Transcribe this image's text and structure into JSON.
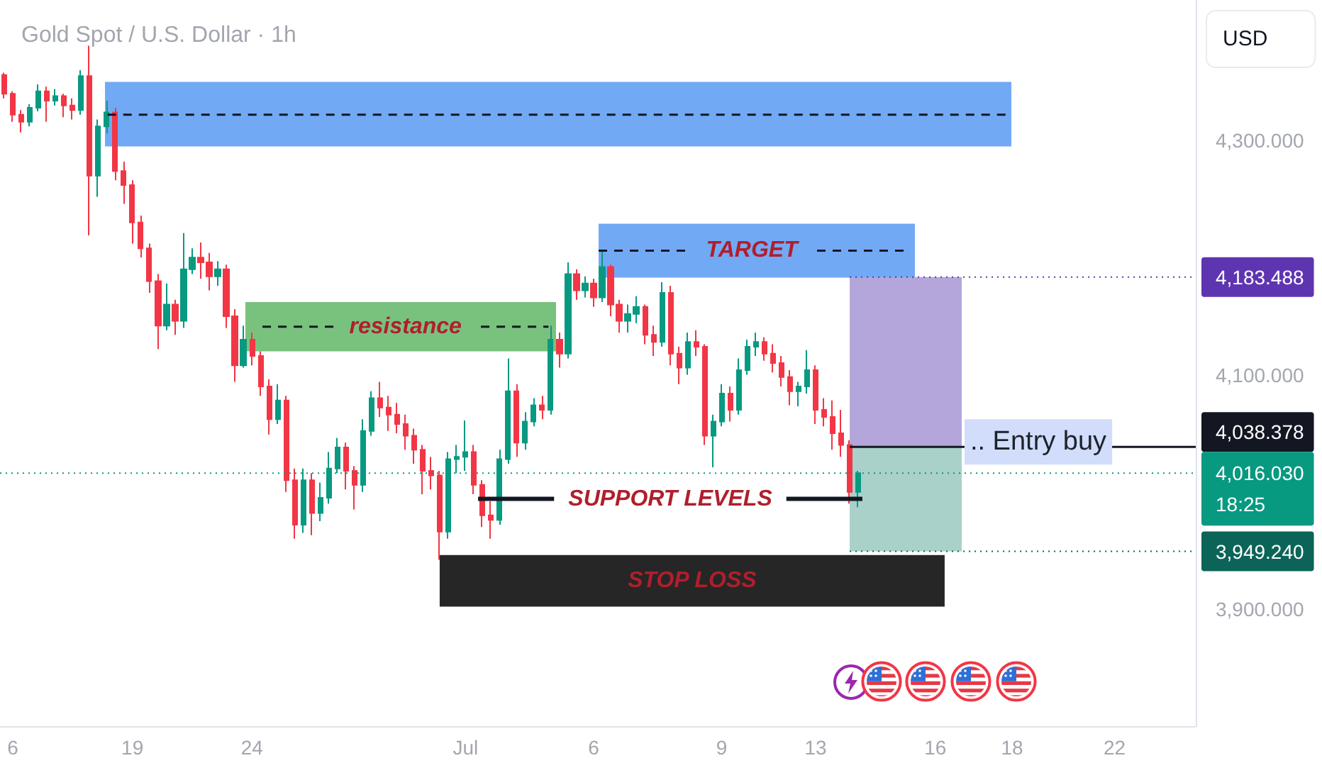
{
  "chart_data": {
    "type": "candlestick",
    "title": "Gold Spot / U.S. Dollar · 1h",
    "ylabel": "USD",
    "categories": [
      null,
      "6",
      null,
      null,
      null,
      null,
      null,
      null,
      null,
      null,
      null,
      null,
      null,
      null,
      null,
      "19",
      null,
      null,
      null,
      null,
      null,
      null,
      null,
      null,
      null,
      null,
      null,
      null,
      null,
      "24",
      null,
      null,
      null,
      null,
      null,
      null,
      null,
      null,
      null,
      null,
      null,
      null,
      null,
      null,
      null,
      null,
      null,
      null,
      null,
      null,
      null,
      null,
      null,
      null,
      "Jul",
      null,
      null,
      null,
      null,
      null,
      null,
      null,
      null,
      null,
      null,
      null,
      null,
      null,
      null,
      "6",
      null,
      null,
      null,
      null,
      null,
      null,
      null,
      null,
      null,
      null,
      null,
      null,
      null,
      null,
      "9",
      null,
      null,
      null,
      null,
      null,
      null,
      null,
      null,
      null,
      null,
      "13",
      null,
      null,
      null,
      null,
      null,
      null,
      null,
      null,
      null,
      null,
      null,
      null,
      null,
      "16",
      null,
      null,
      null,
      null,
      null,
      null,
      null,
      null,
      "18",
      null,
      null,
      null,
      null,
      null,
      null,
      null,
      null,
      null,
      null,
      null,
      "22",
      null,
      null,
      null,
      null,
      null,
      null,
      null,
      null,
      null
    ],
    "ohlc": [
      [
        4356,
        4358,
        4336,
        4340
      ],
      [
        4340,
        4342,
        4316,
        4322
      ],
      [
        4322,
        4326,
        4307,
        4316
      ],
      [
        4316,
        4331,
        4312,
        4328
      ],
      [
        4328,
        4348,
        4325,
        4342
      ],
      [
        4342,
        4346,
        4316,
        4334
      ],
      [
        4334,
        4344,
        4330,
        4338
      ],
      [
        4338,
        4340,
        4320,
        4330
      ],
      [
        4330,
        4336,
        4318,
        4326
      ],
      [
        4326,
        4360,
        4322,
        4355
      ],
      [
        4355,
        4381,
        4219,
        4270
      ],
      [
        4270,
        4318,
        4252,
        4312
      ],
      [
        4312,
        4334,
        4306,
        4324
      ],
      [
        4324,
        4328,
        4266,
        4274
      ],
      [
        4274,
        4282,
        4246,
        4262
      ],
      [
        4262,
        4266,
        4212,
        4230
      ],
      [
        4230,
        4236,
        4200,
        4208
      ],
      [
        4208,
        4212,
        4170,
        4180
      ],
      [
        4180,
        4186,
        4122,
        4142
      ],
      [
        4142,
        4178,
        4138,
        4160
      ],
      [
        4160,
        4164,
        4134,
        4146
      ],
      [
        4146,
        4221,
        4140,
        4190
      ],
      [
        4190,
        4208,
        4186,
        4200
      ],
      [
        4200,
        4213,
        4182,
        4196
      ],
      [
        4196,
        4204,
        4172,
        4184
      ],
      [
        4184,
        4197,
        4176,
        4190
      ],
      [
        4190,
        4194,
        4140,
        4150
      ],
      [
        4150,
        4156,
        4094,
        4108
      ],
      [
        4108,
        4142,
        4106,
        4130
      ],
      [
        4130,
        4136,
        4108,
        4116
      ],
      [
        4116,
        4120,
        4082,
        4090
      ],
      [
        4090,
        4096,
        4049,
        4062
      ],
      [
        4062,
        4092,
        4058,
        4078
      ],
      [
        4078,
        4082,
        4000,
        4010
      ],
      [
        4010,
        4020,
        3960,
        3972
      ],
      [
        3972,
        4020,
        3965,
        4010
      ],
      [
        4010,
        4016,
        3963,
        3982
      ],
      [
        3982,
        4008,
        3975,
        3995
      ],
      [
        3995,
        4034,
        3990,
        4020
      ],
      [
        4020,
        4046,
        4016,
        4038
      ],
      [
        4038,
        4042,
        4002,
        4018
      ],
      [
        4018,
        4022,
        3985,
        4006
      ],
      [
        4006,
        4062,
        4000,
        4052
      ],
      [
        4052,
        4086,
        4048,
        4080
      ],
      [
        4080,
        4094,
        4064,
        4072
      ],
      [
        4072,
        4082,
        4052,
        4066
      ],
      [
        4066,
        4076,
        4050,
        4058
      ],
      [
        4058,
        4066,
        4036,
        4048
      ],
      [
        4048,
        4054,
        4024,
        4036
      ],
      [
        4036,
        4040,
        3998,
        4018
      ],
      [
        4018,
        4030,
        4002,
        4014
      ],
      [
        4014,
        4018,
        3942,
        3966
      ],
      [
        3966,
        4034,
        3960,
        4028
      ],
      [
        4028,
        4040,
        4016,
        4030
      ],
      [
        4030,
        4061,
        4018,
        4034
      ],
      [
        4034,
        4040,
        3998,
        4006
      ],
      [
        4006,
        4010,
        3970,
        3980
      ],
      [
        3980,
        3992,
        3960,
        3976
      ],
      [
        3976,
        4036,
        3972,
        4028
      ],
      [
        4028,
        4114,
        4024,
        4086
      ],
      [
        4086,
        4092,
        4030,
        4042
      ],
      [
        4042,
        4068,
        4036,
        4060
      ],
      [
        4060,
        4080,
        4056,
        4074
      ],
      [
        4074,
        4082,
        4062,
        4070
      ],
      [
        4070,
        4142,
        4066,
        4130
      ],
      [
        4130,
        4136,
        4106,
        4118
      ],
      [
        4118,
        4196,
        4114,
        4186
      ],
      [
        4186,
        4190,
        4164,
        4172
      ],
      [
        4172,
        4184,
        4166,
        4178
      ],
      [
        4178,
        4182,
        4158,
        4166
      ],
      [
        4166,
        4206,
        4162,
        4192
      ],
      [
        4192,
        4194,
        4150,
        4160
      ],
      [
        4160,
        4164,
        4136,
        4146
      ],
      [
        4146,
        4160,
        4136,
        4152
      ],
      [
        4152,
        4167,
        4144,
        4158
      ],
      [
        4158,
        4160,
        4126,
        4134
      ],
      [
        4134,
        4142,
        4116,
        4128
      ],
      [
        4128,
        4179,
        4124,
        4170
      ],
      [
        4170,
        4176,
        4108,
        4118
      ],
      [
        4118,
        4124,
        4092,
        4106
      ],
      [
        4106,
        4136,
        4100,
        4128
      ],
      [
        4128,
        4138,
        4116,
        4124
      ],
      [
        4124,
        4126,
        4040,
        4048
      ],
      [
        4048,
        4066,
        4021,
        4060
      ],
      [
        4060,
        4092,
        4056,
        4084
      ],
      [
        4084,
        4090,
        4060,
        4070
      ],
      [
        4070,
        4114,
        4066,
        4104
      ],
      [
        4104,
        4130,
        4100,
        4124
      ],
      [
        4124,
        4136,
        4116,
        4128
      ],
      [
        4128,
        4132,
        4112,
        4118
      ],
      [
        4118,
        4126,
        4102,
        4110
      ],
      [
        4110,
        4116,
        4090,
        4098
      ],
      [
        4098,
        4104,
        4074,
        4086
      ],
      [
        4086,
        4094,
        4073,
        4090
      ],
      [
        4090,
        4121,
        4084,
        4104
      ],
      [
        4104,
        4108,
        4058,
        4070
      ],
      [
        4070,
        4080,
        4056,
        4064
      ],
      [
        4064,
        4078,
        4036,
        4050
      ],
      [
        4050,
        4070,
        4030,
        4040
      ],
      [
        4040,
        4044,
        3990,
        4000
      ],
      [
        4000,
        4018,
        3987,
        4016.03
      ],
      null,
      null,
      null,
      null,
      null,
      null,
      null,
      null,
      null,
      null,
      null,
      null,
      null,
      null,
      null,
      null,
      null,
      null,
      null,
      null,
      null,
      null,
      null,
      null,
      null,
      null,
      null,
      null,
      null,
      null,
      null,
      null,
      null,
      null,
      null,
      null,
      null,
      null,
      null
    ],
    "ylim": [
      3800,
      4420
    ],
    "yticks": [
      {
        "value": 3900,
        "label": "3,900.000"
      },
      {
        "value": 4100,
        "label": "4,100.000"
      },
      {
        "value": 4300,
        "label": "4,300.000"
      }
    ],
    "bands": [
      {
        "axis": "y",
        "from": 4295,
        "to": 4350,
        "color": "#72a9f4"
      },
      {
        "axis": "y",
        "from": 4183,
        "to": 4229,
        "color": "#72a9f4"
      },
      {
        "axis": "y",
        "from": 4120,
        "to": 4162,
        "color": "#79c27d"
      },
      {
        "axis": "y",
        "from": 3902,
        "to": 3946,
        "label": "STOP LOSS",
        "color": "#262626"
      },
      {
        "axis": "y",
        "from": 4038.378,
        "to": 4183.488,
        "color": "#b4a5da"
      },
      {
        "axis": "y",
        "from": 3949.24,
        "to": 4038.378,
        "color": "#a9d1c9"
      }
    ],
    "ref_lines": [
      {
        "axis": "y",
        "value": 4322,
        "color": "#131722",
        "line_style": "dashed"
      },
      {
        "axis": "y",
        "value": 4206,
        "label": "TARGET",
        "color": "#131722",
        "line_style": "dashed"
      },
      {
        "axis": "y",
        "value": 4141,
        "label": "resistance",
        "color": "#131722",
        "line_style": "dashed"
      },
      {
        "axis": "y",
        "value": 3994,
        "label": "SUPPORT LEVELS",
        "color": "#131722",
        "line_style": "solid"
      },
      {
        "axis": "y",
        "value": 4038.378,
        "label": "4,038.378",
        "color": "#131722",
        "line_style": "solid"
      },
      {
        "axis": "y",
        "value": 4016.03,
        "label": "4,016.030\n18:25",
        "color": "#089981",
        "line_style": "dotted"
      },
      {
        "axis": "y",
        "value": 4183.488,
        "label": "4,183.488",
        "color": "#5e35b1",
        "line_style": "dotted"
      },
      {
        "axis": "y",
        "value": 3949.24,
        "label": "3,949.240",
        "color": "#0b6457",
        "line_style": "dotted"
      }
    ],
    "annotations": [
      ".. Entry buy"
    ]
  }
}
